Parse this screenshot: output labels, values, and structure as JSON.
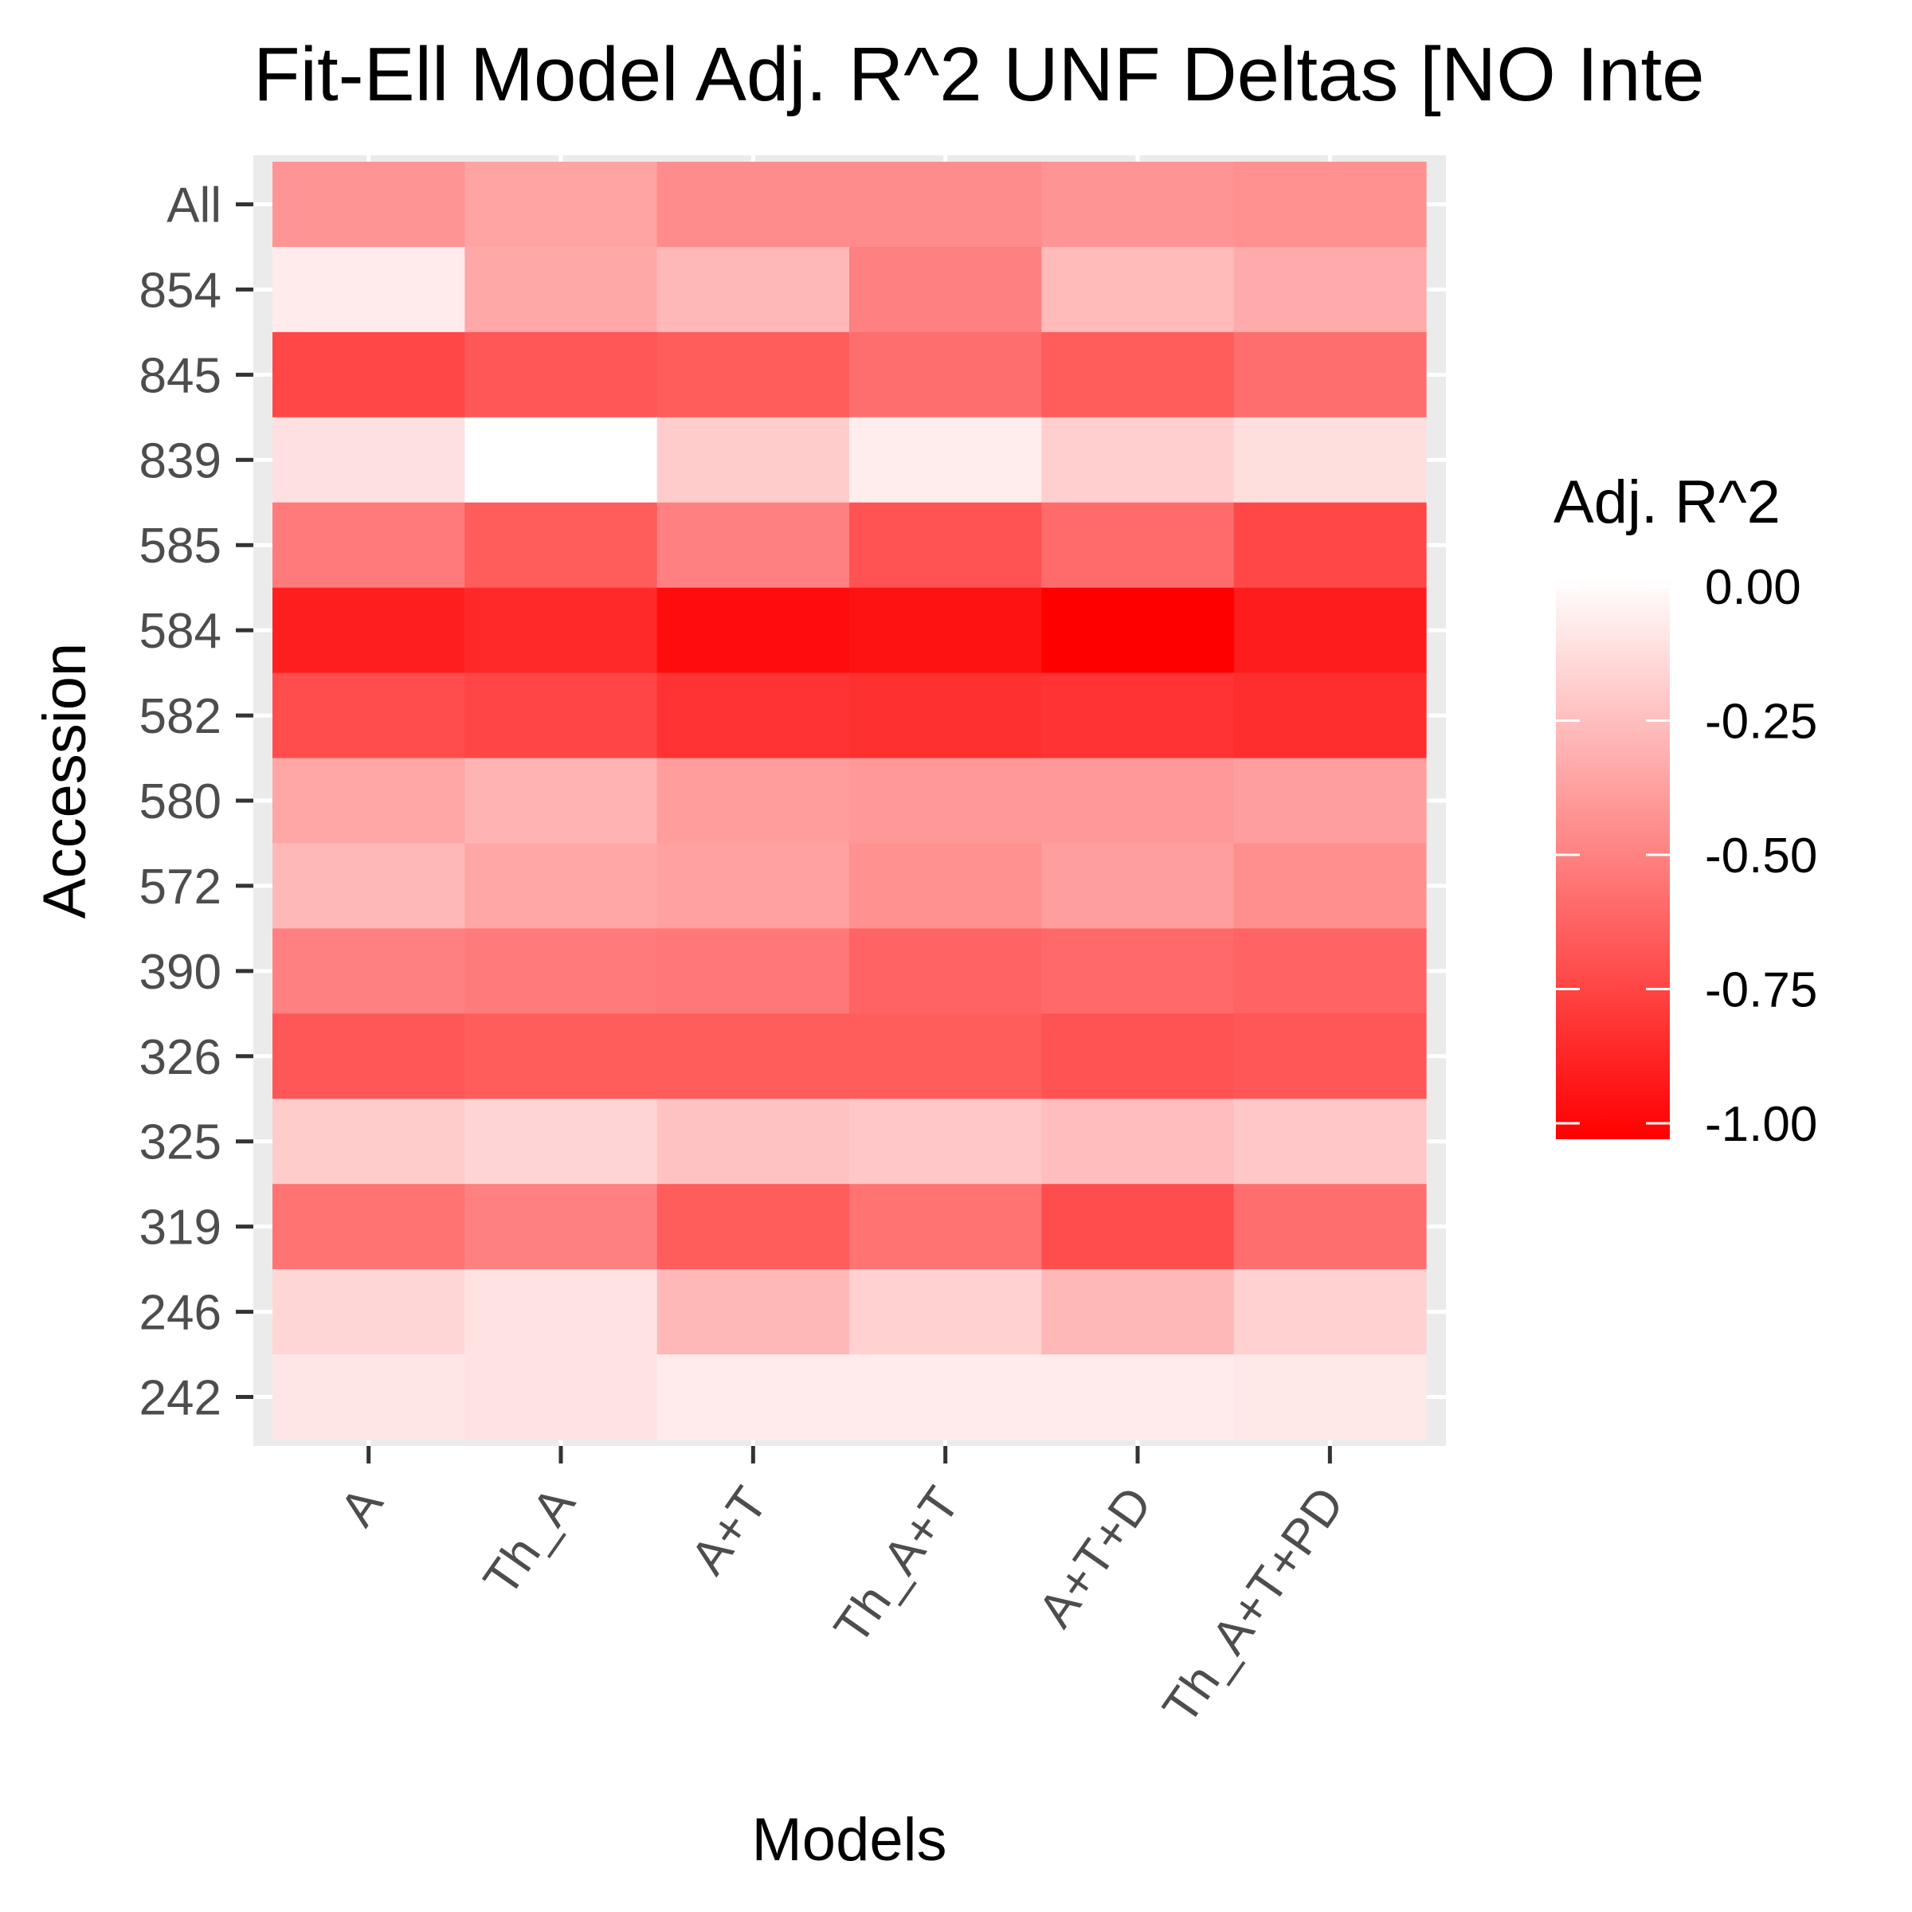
{
  "chart_data": {
    "type": "heatmap",
    "title": "Fit-Ell Model Adj. R^2 UNF Deltas [NO Inte",
    "xlabel": "Models",
    "ylabel": "Accession",
    "x_categories": [
      "A",
      "Th_A",
      "A+T",
      "Th_A+T",
      "A+T+D",
      "Th_A+T+PD"
    ],
    "y_categories": [
      "All",
      "854",
      "845",
      "839",
      "585",
      "584",
      "582",
      "580",
      "572",
      "390",
      "326",
      "325",
      "319",
      "246",
      "242"
    ],
    "values": [
      [
        -0.42,
        -0.36,
        -0.45,
        -0.45,
        -0.42,
        -0.43
      ],
      [
        -0.08,
        -0.34,
        -0.28,
        -0.5,
        -0.27,
        -0.33
      ],
      [
        -0.72,
        -0.66,
        -0.64,
        -0.57,
        -0.64,
        -0.57
      ],
      [
        -0.12,
        0.0,
        -0.2,
        -0.07,
        -0.19,
        -0.13
      ],
      [
        -0.52,
        -0.64,
        -0.5,
        -0.68,
        -0.58,
        -0.72
      ],
      [
        -0.88,
        -0.84,
        -0.95,
        -0.93,
        -1.0,
        -0.89
      ],
      [
        -0.7,
        -0.73,
        -0.8,
        -0.81,
        -0.8,
        -0.82
      ],
      [
        -0.35,
        -0.3,
        -0.39,
        -0.4,
        -0.4,
        -0.38
      ],
      [
        -0.28,
        -0.35,
        -0.37,
        -0.43,
        -0.38,
        -0.44
      ],
      [
        -0.5,
        -0.52,
        -0.53,
        -0.61,
        -0.59,
        -0.61
      ],
      [
        -0.66,
        -0.64,
        -0.64,
        -0.64,
        -0.68,
        -0.66
      ],
      [
        -0.2,
        -0.17,
        -0.24,
        -0.22,
        -0.26,
        -0.22
      ],
      [
        -0.55,
        -0.5,
        -0.64,
        -0.55,
        -0.7,
        -0.57
      ],
      [
        -0.16,
        -0.11,
        -0.28,
        -0.18,
        -0.28,
        -0.18
      ],
      [
        -0.1,
        -0.11,
        -0.08,
        -0.08,
        -0.08,
        -0.09
      ]
    ],
    "color_scale": {
      "low": -1.0,
      "high": 0.0,
      "low_color": "#ff0000",
      "high_color": "#ffffff"
    },
    "legend": {
      "title": "Adj. R^2",
      "ticks": [
        0.0,
        -0.25,
        -0.5,
        -0.75,
        -1.0
      ],
      "tick_labels": [
        "0.00",
        "-0.25",
        "-0.50",
        "-0.75",
        "-1.00"
      ],
      "position": "right"
    },
    "grid": true,
    "panel_background": "#ebebeb"
  }
}
